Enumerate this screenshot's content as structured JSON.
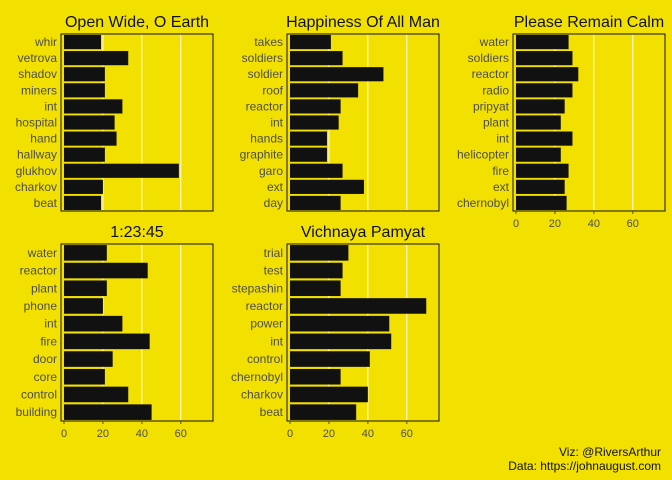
{
  "chart_data": [
    {
      "type": "bar",
      "orientation": "horizontal",
      "title": "Open Wide, O Earth",
      "categories": [
        "whir",
        "vetrova",
        "shadov",
        "miners",
        "int",
        "hospital",
        "hand",
        "hallway",
        "glukhov",
        "charkov",
        "beat"
      ],
      "values": [
        19,
        33,
        21,
        21,
        30,
        26,
        27,
        21,
        59,
        20,
        19
      ],
      "xlim": [
        0,
        75
      ],
      "xticks": [],
      "gridlines": [
        20,
        40,
        60
      ]
    },
    {
      "type": "bar",
      "orientation": "horizontal",
      "title": "Happiness Of All Man",
      "categories": [
        "takes",
        "soldiers",
        "soldier",
        "roof",
        "reactor",
        "int",
        "hands",
        "graphite",
        "garo",
        "ext",
        "day"
      ],
      "values": [
        21,
        27,
        48,
        35,
        26,
        25,
        19,
        19,
        27,
        38,
        26
      ],
      "xlim": [
        0,
        75
      ],
      "xticks": [],
      "gridlines": [
        20,
        40,
        60
      ]
    },
    {
      "type": "bar",
      "orientation": "horizontal",
      "title": "Please Remain Calm",
      "categories": [
        "water",
        "soldiers",
        "reactor",
        "radio",
        "pripyat",
        "plant",
        "int",
        "helicopter",
        "fire",
        "ext",
        "chernobyl"
      ],
      "values": [
        27,
        29,
        32,
        29,
        25,
        23,
        29,
        23,
        27,
        25,
        26
      ],
      "xlim": [
        0,
        75
      ],
      "xticks": [
        "0",
        "20",
        "40",
        "60"
      ],
      "gridlines": [
        20,
        40,
        60
      ]
    },
    {
      "type": "bar",
      "orientation": "horizontal",
      "title": "1:23:45",
      "categories": [
        "water",
        "reactor",
        "plant",
        "phone",
        "int",
        "fire",
        "door",
        "core",
        "control",
        "building"
      ],
      "values": [
        22,
        43,
        22,
        20,
        30,
        44,
        25,
        21,
        33,
        45
      ],
      "xlim": [
        0,
        75
      ],
      "xticks": [
        "0",
        "20",
        "40",
        "60"
      ],
      "gridlines": [
        20,
        40,
        60
      ]
    },
    {
      "type": "bar",
      "orientation": "horizontal",
      "title": "Vichnaya Pamyat",
      "categories": [
        "trial",
        "test",
        "stepashin",
        "reactor",
        "power",
        "int",
        "control",
        "chernobyl",
        "charkov",
        "beat"
      ],
      "values": [
        30,
        27,
        26,
        70,
        51,
        52,
        41,
        26,
        40,
        34
      ],
      "xlim": [
        0,
        75
      ],
      "xticks": [
        "0",
        "20",
        "40",
        "60"
      ],
      "gridlines": [
        20,
        40,
        60
      ]
    }
  ],
  "colors": {
    "background": "#f2e100",
    "bar": "#111111",
    "grid": "#ffffff",
    "text": "#111111",
    "axis_text": "#4d4d4d"
  },
  "caption": {
    "line1": "Viz: @RiversArthur",
    "line2": "Data: https://johnaugust.com"
  }
}
